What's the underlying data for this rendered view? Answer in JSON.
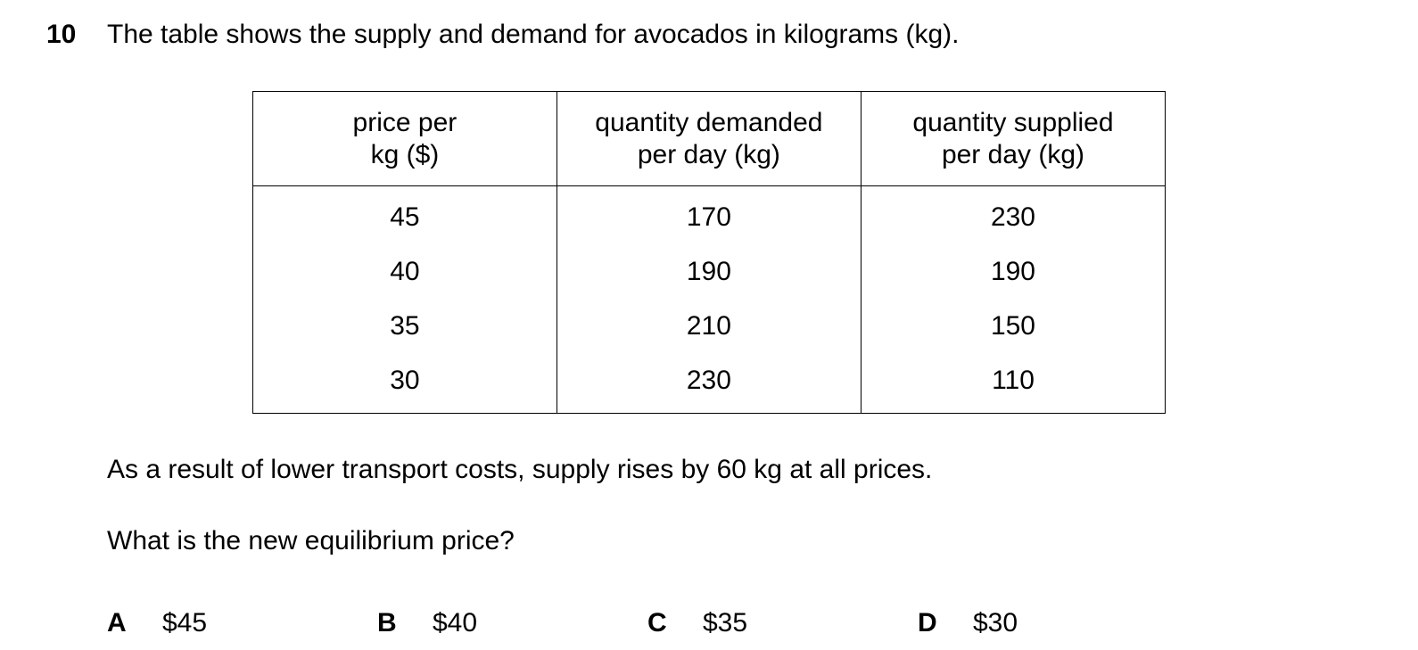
{
  "question": {
    "number": "10",
    "stem": "The table shows the supply and demand for avocados in kilograms (kg)."
  },
  "table": {
    "headers": [
      [
        "price per",
        "kg ($)"
      ],
      [
        "quantity demanded",
        "per day (kg)"
      ],
      [
        "quantity supplied",
        "per day (kg)"
      ]
    ],
    "rows": [
      [
        "45",
        "170",
        "230"
      ],
      [
        "40",
        "190",
        "190"
      ],
      [
        "35",
        "210",
        "150"
      ],
      [
        "30",
        "230",
        "110"
      ]
    ]
  },
  "context": "As a result of lower transport costs, supply rises by 60 kg at all prices.",
  "prompt": "What is the new equilibrium price?",
  "options": [
    {
      "letter": "A",
      "text": "$45"
    },
    {
      "letter": "B",
      "text": "$40"
    },
    {
      "letter": "C",
      "text": "$35"
    },
    {
      "letter": "D",
      "text": "$30"
    }
  ]
}
